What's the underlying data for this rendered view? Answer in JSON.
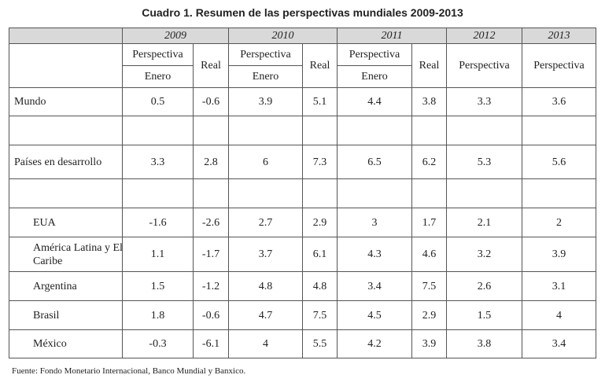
{
  "title": "Cuadro 1. Resumen de las perspectivas mundiales 2009-2013",
  "header": {
    "years": [
      "2009",
      "2010",
      "2011",
      "2012",
      "2013"
    ],
    "perspectiva": "Perspectiva",
    "enero": "Enero",
    "real": "Real"
  },
  "rows": [
    {
      "label": "Mundo",
      "values": [
        "0.5",
        "-0.6",
        "3.9",
        "5.1",
        "4.4",
        "3.8",
        "3.3",
        "3.6"
      ]
    },
    {
      "label": "Países en desarrollo",
      "values": [
        "3.3",
        "2.8",
        "6",
        "7.3",
        "6.5",
        "6.2",
        "5.3",
        "5.6"
      ]
    },
    {
      "label": "EUA",
      "values": [
        "-1.6",
        "-2.6",
        "2.7",
        "2.9",
        "3",
        "1.7",
        "2.1",
        "2"
      ]
    },
    {
      "label": "América Latina y El Caribe",
      "values": [
        "1.1",
        "-1.7",
        "3.7",
        "6.1",
        "4.3",
        "4.6",
        "3.2",
        "3.9"
      ]
    },
    {
      "label": "Argentina",
      "values": [
        "1.5",
        "-1.2",
        "4.8",
        "4.8",
        "3.4",
        "7.5",
        "2.6",
        "3.1"
      ]
    },
    {
      "label": "Brasil",
      "values": [
        "1.8",
        "-0.6",
        "4.7",
        "7.5",
        "4.5",
        "2.9",
        "1.5",
        "4"
      ]
    },
    {
      "label": "México",
      "values": [
        "-0.3",
        "-6.1",
        "4",
        "5.5",
        "4.2",
        "3.9",
        "3.8",
        "3.4"
      ]
    }
  ],
  "source": "Fuente: Fondo Monetario Internacional, Banco Mundial y Banxico."
}
